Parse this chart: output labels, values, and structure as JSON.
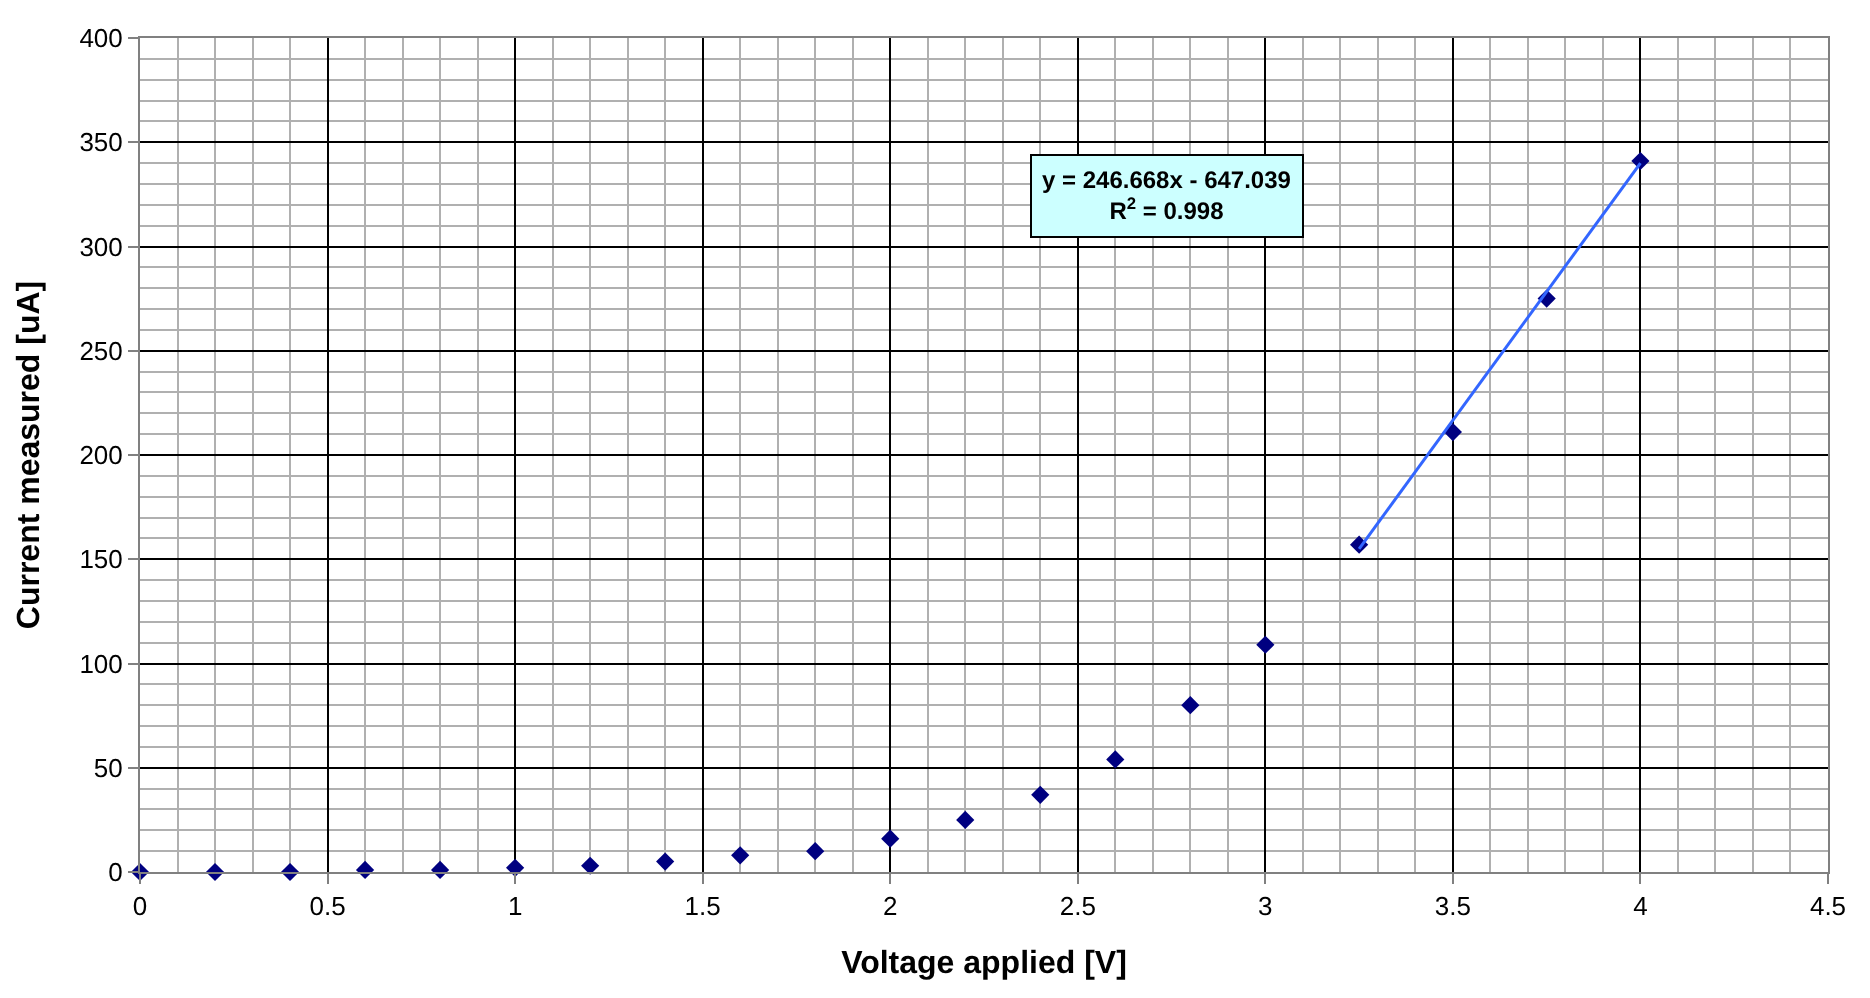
{
  "chart_data": {
    "type": "scatter",
    "xlabel": "Voltage applied [V]",
    "ylabel": "Current measured [uA]",
    "xlim": [
      0,
      4.5
    ],
    "xticks": [
      0,
      0.5,
      1,
      1.5,
      2,
      2.5,
      3,
      3.5,
      4,
      4.5
    ],
    "ylim": [
      0,
      400
    ],
    "yticks": [
      0,
      50,
      100,
      150,
      200,
      250,
      300,
      350,
      400
    ],
    "grid": true,
    "annotations": [
      "y = 246.668x - 647.039\nR$^{2}$ = 0.998"
    ],
    "series": [
      {
        "color": "#000080",
        "marker": "diamond",
        "x": [
          0,
          0.2,
          0.4,
          0.6,
          0.8,
          1,
          1.2,
          1.4,
          1.6,
          1.8,
          2,
          2.2,
          2.4,
          2.6,
          2.8,
          3,
          3.25,
          3.5,
          3.75,
          4
        ],
        "values": [
          0,
          0,
          0,
          1,
          1,
          2,
          3,
          5,
          8,
          10,
          16,
          25,
          37,
          54,
          80,
          109,
          157,
          211,
          275,
          341
        ]
      },
      {
        "type": "line",
        "color": "#3366ff",
        "line_style": "solid",
        "x": [
          3.25,
          4
        ],
        "values": [
          155,
          340
        ]
      }
    ]
  }
}
